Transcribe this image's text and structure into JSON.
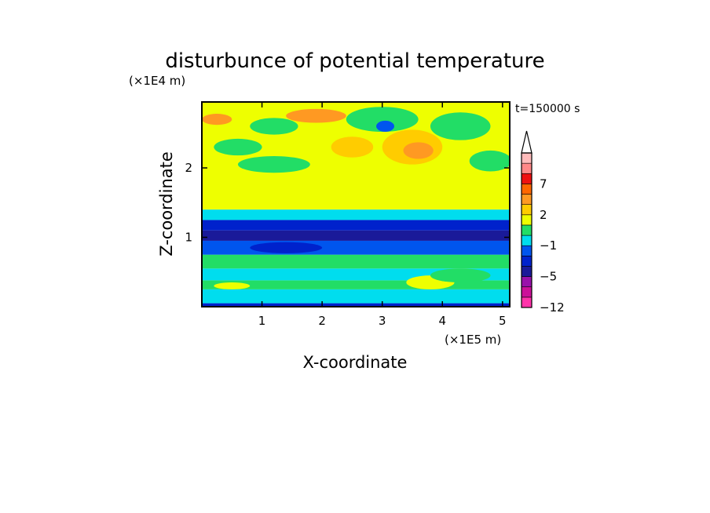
{
  "chart_data": {
    "type": "heatmap",
    "title": "disturbunce of potential temperature",
    "xlabel": "X-coordinate",
    "ylabel": "Z-coordinate",
    "x_unit": "(×1E5 m)",
    "y_unit": "(×1E4 m)",
    "time_label": "t=150000 s",
    "xlim": [
      0,
      5.12
    ],
    "ylim": [
      0,
      2.95
    ],
    "x_ticks": [
      1,
      2,
      3,
      4,
      5
    ],
    "y_ticks": [
      1,
      2
    ],
    "colorbar": {
      "tick_labels": [
        "7",
        "2",
        "-1",
        "-5",
        "-12"
      ],
      "levels": [
        {
          "color": "#ff33aa"
        },
        {
          "color": "#cc1199"
        },
        {
          "color": "#9911aa"
        },
        {
          "color": "#1a1a99"
        },
        {
          "color": "#0022cc"
        },
        {
          "color": "#0055ee"
        },
        {
          "color": "#00ddee"
        },
        {
          "color": "#22dd66"
        },
        {
          "color": "#eeff00"
        },
        {
          "color": "#ffcc00"
        },
        {
          "color": "#ff9922"
        },
        {
          "color": "#ff6600"
        },
        {
          "color": "#ee1111"
        },
        {
          "color": "#ff8888"
        },
        {
          "color": "#ffbbbb"
        }
      ],
      "extend_top": true
    },
    "layers": [
      {
        "z": [
          0.0,
          0.05
        ],
        "color": "#0022cc"
      },
      {
        "z": [
          0.05,
          0.25
        ],
        "color": "#00ddee"
      },
      {
        "z": [
          0.25,
          0.38
        ],
        "color": "#22dd66"
      },
      {
        "z": [
          0.38,
          0.55
        ],
        "color": "#00ddee"
      },
      {
        "z": [
          0.55,
          0.75
        ],
        "color": "#22dd66"
      },
      {
        "z": [
          0.75,
          0.95
        ],
        "color": "#0055ee"
      },
      {
        "z": [
          0.95,
          1.1
        ],
        "color": "#1a1a99"
      },
      {
        "z": [
          1.1,
          1.25
        ],
        "color": "#0022cc"
      },
      {
        "z": [
          1.25,
          1.4
        ],
        "color": "#00ddee"
      },
      {
        "z": [
          1.4,
          2.95
        ],
        "color": "#eeff00"
      }
    ],
    "blobs": [
      {
        "x": 0.25,
        "z": 2.7,
        "rx": 0.25,
        "rz": 0.08,
        "color": "#ff9922"
      },
      {
        "x": 0.6,
        "z": 2.3,
        "rx": 0.4,
        "rz": 0.12,
        "color": "#22dd66"
      },
      {
        "x": 1.2,
        "z": 2.6,
        "rx": 0.4,
        "rz": 0.12,
        "color": "#22dd66"
      },
      {
        "x": 1.2,
        "z": 2.05,
        "rx": 0.6,
        "rz": 0.12,
        "color": "#22dd66"
      },
      {
        "x": 1.9,
        "z": 2.75,
        "rx": 0.5,
        "rz": 0.1,
        "color": "#ff9922"
      },
      {
        "x": 2.5,
        "z": 2.3,
        "rx": 0.35,
        "rz": 0.15,
        "color": "#ffcc00"
      },
      {
        "x": 3.0,
        "z": 2.7,
        "rx": 0.6,
        "rz": 0.18,
        "color": "#22dd66"
      },
      {
        "x": 3.05,
        "z": 2.6,
        "rx": 0.15,
        "rz": 0.08,
        "color": "#0055ee"
      },
      {
        "x": 3.5,
        "z": 2.3,
        "rx": 0.5,
        "rz": 0.25,
        "color": "#ffcc00"
      },
      {
        "x": 3.6,
        "z": 2.25,
        "rx": 0.25,
        "rz": 0.12,
        "color": "#ff9922"
      },
      {
        "x": 4.3,
        "z": 2.6,
        "rx": 0.5,
        "rz": 0.2,
        "color": "#22dd66"
      },
      {
        "x": 4.8,
        "z": 2.1,
        "rx": 0.35,
        "rz": 0.15,
        "color": "#22dd66"
      },
      {
        "x": 3.8,
        "z": 0.35,
        "rx": 0.4,
        "rz": 0.1,
        "color": "#eeff00"
      },
      {
        "x": 4.3,
        "z": 0.45,
        "rx": 0.5,
        "rz": 0.1,
        "color": "#22dd66"
      },
      {
        "x": 1.4,
        "z": 0.85,
        "rx": 0.6,
        "rz": 0.08,
        "color": "#0022cc"
      },
      {
        "x": 0.5,
        "z": 0.3,
        "rx": 0.3,
        "rz": 0.05,
        "color": "#eeff00"
      }
    ]
  }
}
